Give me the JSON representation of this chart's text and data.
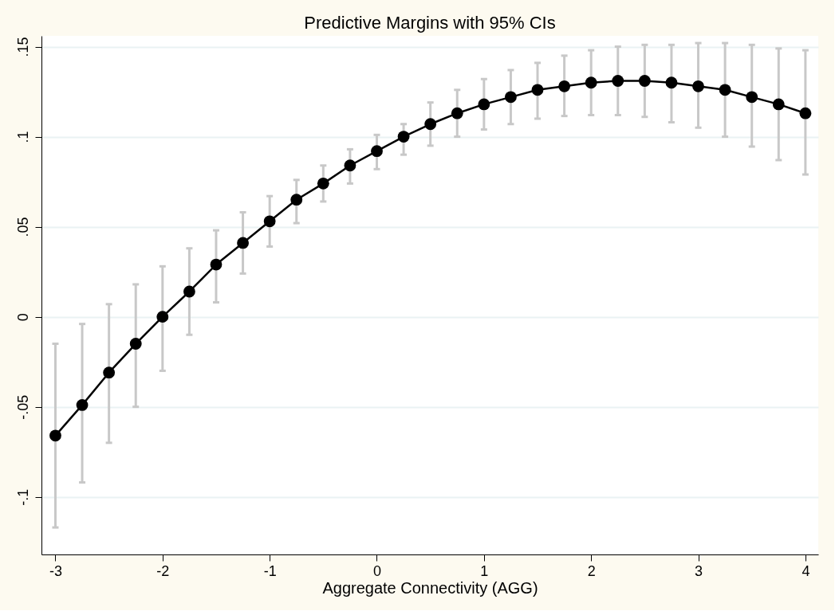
{
  "chart_data": {
    "type": "line",
    "title": "Predictive Margins with 95% CIs",
    "xlabel": "Aggregate Connectivity (AGG)",
    "x": [
      -3,
      -2.75,
      -2.5,
      -2.25,
      -2,
      -1.75,
      -1.5,
      -1.25,
      -1,
      -0.75,
      -0.5,
      -0.25,
      0,
      0.25,
      0.5,
      0.75,
      1,
      1.25,
      1.5,
      1.75,
      2,
      2.25,
      2.5,
      2.75,
      3,
      3.25,
      3.5,
      3.75,
      4
    ],
    "series": [
      {
        "color": "#000000",
        "values": [
          -0.066,
          -0.049,
          -0.031,
          -0.015,
          0.0,
          0.014,
          0.029,
          0.041,
          0.053,
          0.065,
          0.074,
          0.084,
          0.092,
          0.1,
          0.107,
          0.113,
          0.118,
          0.122,
          0.126,
          0.128,
          0.13,
          0.131,
          0.131,
          0.13,
          0.128,
          0.126,
          0.122,
          0.118,
          0.113
        ],
        "errors": [
          [
            -0.117,
            -0.015
          ],
          [
            -0.092,
            -0.004
          ],
          [
            -0.07,
            0.007
          ],
          [
            -0.05,
            0.018
          ],
          [
            -0.03,
            0.028
          ],
          [
            -0.01,
            0.038
          ],
          [
            0.008,
            0.048
          ],
          [
            0.024,
            0.058
          ],
          [
            0.039,
            0.067
          ],
          [
            0.052,
            0.076
          ],
          [
            0.064,
            0.084
          ],
          [
            0.074,
            0.093
          ],
          [
            0.082,
            0.101
          ],
          [
            0.09,
            0.107
          ],
          [
            0.095,
            0.119
          ],
          [
            0.1,
            0.126
          ],
          [
            0.104,
            0.132
          ],
          [
            0.107,
            0.137
          ],
          [
            0.11,
            0.141
          ],
          [
            0.1115,
            0.145
          ],
          [
            0.112,
            0.148
          ],
          [
            0.112,
            0.15
          ],
          [
            0.111,
            0.151
          ],
          [
            0.108,
            0.151
          ],
          [
            0.105,
            0.152
          ],
          [
            0.1,
            0.152
          ],
          [
            0.0945,
            0.151
          ],
          [
            0.087,
            0.149
          ],
          [
            0.079,
            0.148
          ]
        ]
      }
    ],
    "xlim": [
      -3.13,
      4.12
    ],
    "xticks": [
      -3,
      -2,
      -1,
      0,
      1,
      2,
      3,
      4
    ],
    "ylim": [
      -0.132,
      0.156
    ],
    "yticks": [
      {
        "value": -0.1,
        "label": "-.1"
      },
      {
        "value": -0.05,
        "label": "-.05"
      },
      0,
      {
        "value": 0.05,
        "label": ".05"
      },
      {
        "value": 0.1,
        "label": ".1"
      },
      {
        "value": 0.15,
        "label": ".15"
      }
    ],
    "grid": "y",
    "marker": "circle",
    "line_style": "solid"
  }
}
